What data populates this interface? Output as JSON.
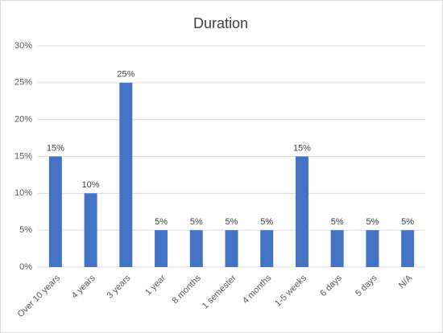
{
  "chart_data": {
    "type": "bar",
    "title": "Duration",
    "categories": [
      "Over 10 years",
      "4 years",
      "3 years",
      "1 year",
      "8 months",
      "1 semester",
      "4 months",
      "1-5 weeks",
      "6 days",
      "5 days",
      "N/A"
    ],
    "values": [
      15,
      10,
      25,
      5,
      5,
      5,
      5,
      15,
      5,
      5,
      5
    ],
    "value_labels": [
      "15%",
      "10%",
      "25%",
      "5%",
      "5%",
      "5%",
      "5%",
      "15%",
      "5%",
      "5%",
      "5%"
    ],
    "color": "#4472c4",
    "ylim": [
      0,
      30
    ],
    "yticks": [
      {
        "value": 0,
        "label": "0%"
      },
      {
        "value": 5,
        "label": "5%"
      },
      {
        "value": 10,
        "label": "10%"
      },
      {
        "value": 15,
        "label": "15%"
      },
      {
        "value": 20,
        "label": "20%"
      },
      {
        "value": 25,
        "label": "25%"
      },
      {
        "value": 30,
        "label": "30%"
      }
    ],
    "grid": true
  }
}
